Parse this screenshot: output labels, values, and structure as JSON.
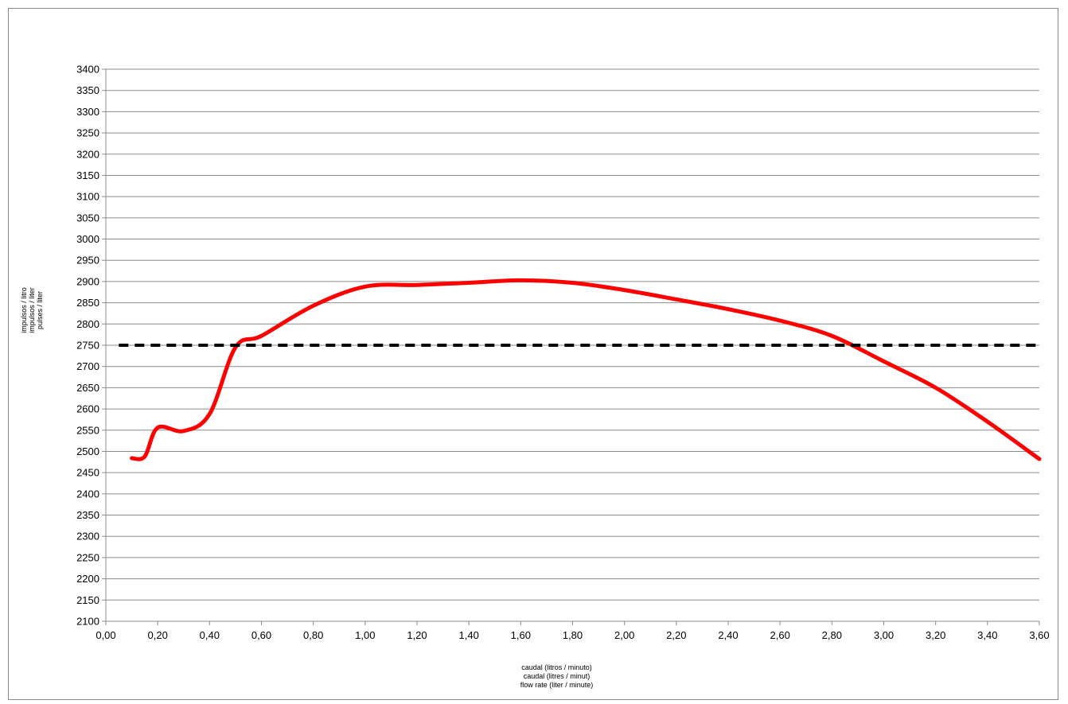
{
  "chart_data": {
    "type": "line",
    "title": "",
    "xlabel_lines": [
      "caudal (litros / minuto)",
      "caudal (litres / minut)",
      "flow rate (liter / minute)"
    ],
    "ylabel_lines": [
      "impulsos / litro",
      "impulsos / liter",
      "pulses / liter"
    ],
    "xlim": [
      0.0,
      3.6
    ],
    "ylim": [
      2100,
      3400
    ],
    "x_tick_values": [
      0.0,
      0.2,
      0.4,
      0.6,
      0.8,
      1.0,
      1.2,
      1.4,
      1.6,
      1.8,
      2.0,
      2.2,
      2.4,
      2.6,
      2.8,
      3.0,
      3.2,
      3.4,
      3.6
    ],
    "x_tick_labels": [
      "0,00",
      "0,20",
      "0,40",
      "0,60",
      "0,80",
      "1,00",
      "1,20",
      "1,40",
      "1,60",
      "1,80",
      "2,00",
      "2,20",
      "2,40",
      "2,60",
      "2,80",
      "3,00",
      "3,20",
      "3,40",
      "3,60"
    ],
    "y_tick_values": [
      2100,
      2150,
      2200,
      2250,
      2300,
      2350,
      2400,
      2450,
      2500,
      2550,
      2600,
      2650,
      2700,
      2750,
      2800,
      2850,
      2900,
      2950,
      3000,
      3050,
      3100,
      3150,
      3200,
      3250,
      3300,
      3350,
      3400
    ],
    "y_tick_labels": [
      "2100",
      "2150",
      "2200",
      "2250",
      "2300",
      "2350",
      "2400",
      "2450",
      "2500",
      "2550",
      "2600",
      "2650",
      "2700",
      "2750",
      "2800",
      "2850",
      "2900",
      "2950",
      "3000",
      "3050",
      "3100",
      "3150",
      "3200",
      "3250",
      "3300",
      "3350",
      "3400"
    ],
    "grid": "horizontal",
    "legend": "none",
    "series": [
      {
        "style": "solid",
        "color": "#ff0000",
        "x": [
          0.1,
          0.15,
          0.2,
          0.3,
          0.4,
          0.5,
          0.6,
          0.8,
          1.0,
          1.2,
          1.4,
          1.6,
          1.8,
          2.0,
          2.2,
          2.4,
          2.6,
          2.8,
          3.0,
          3.2,
          3.4,
          3.6
        ],
        "y": [
          2484,
          2488,
          2556,
          2548,
          2588,
          2745,
          2772,
          2843,
          2888,
          2892,
          2897,
          2903,
          2897,
          2880,
          2858,
          2835,
          2808,
          2772,
          2712,
          2650,
          2570,
          2482
        ]
      },
      {
        "style": "dashed",
        "color": "#000000",
        "x": [
          0.05,
          3.6
        ],
        "y": [
          2750,
          2750
        ]
      }
    ]
  }
}
